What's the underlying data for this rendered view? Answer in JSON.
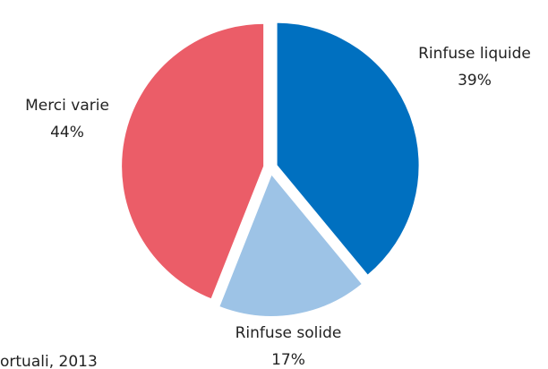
{
  "chart_data": {
    "type": "pie",
    "categories": [
      "Rinfuse liquide",
      "Rinfuse solide",
      "Merci varie"
    ],
    "values": [
      39,
      17,
      44
    ],
    "value_labels": [
      "39%",
      "17%",
      "44%"
    ],
    "colors": [
      "#0070c0",
      "#9dc3e6",
      "#eb5d68"
    ],
    "source": "ortuali, 2013"
  }
}
